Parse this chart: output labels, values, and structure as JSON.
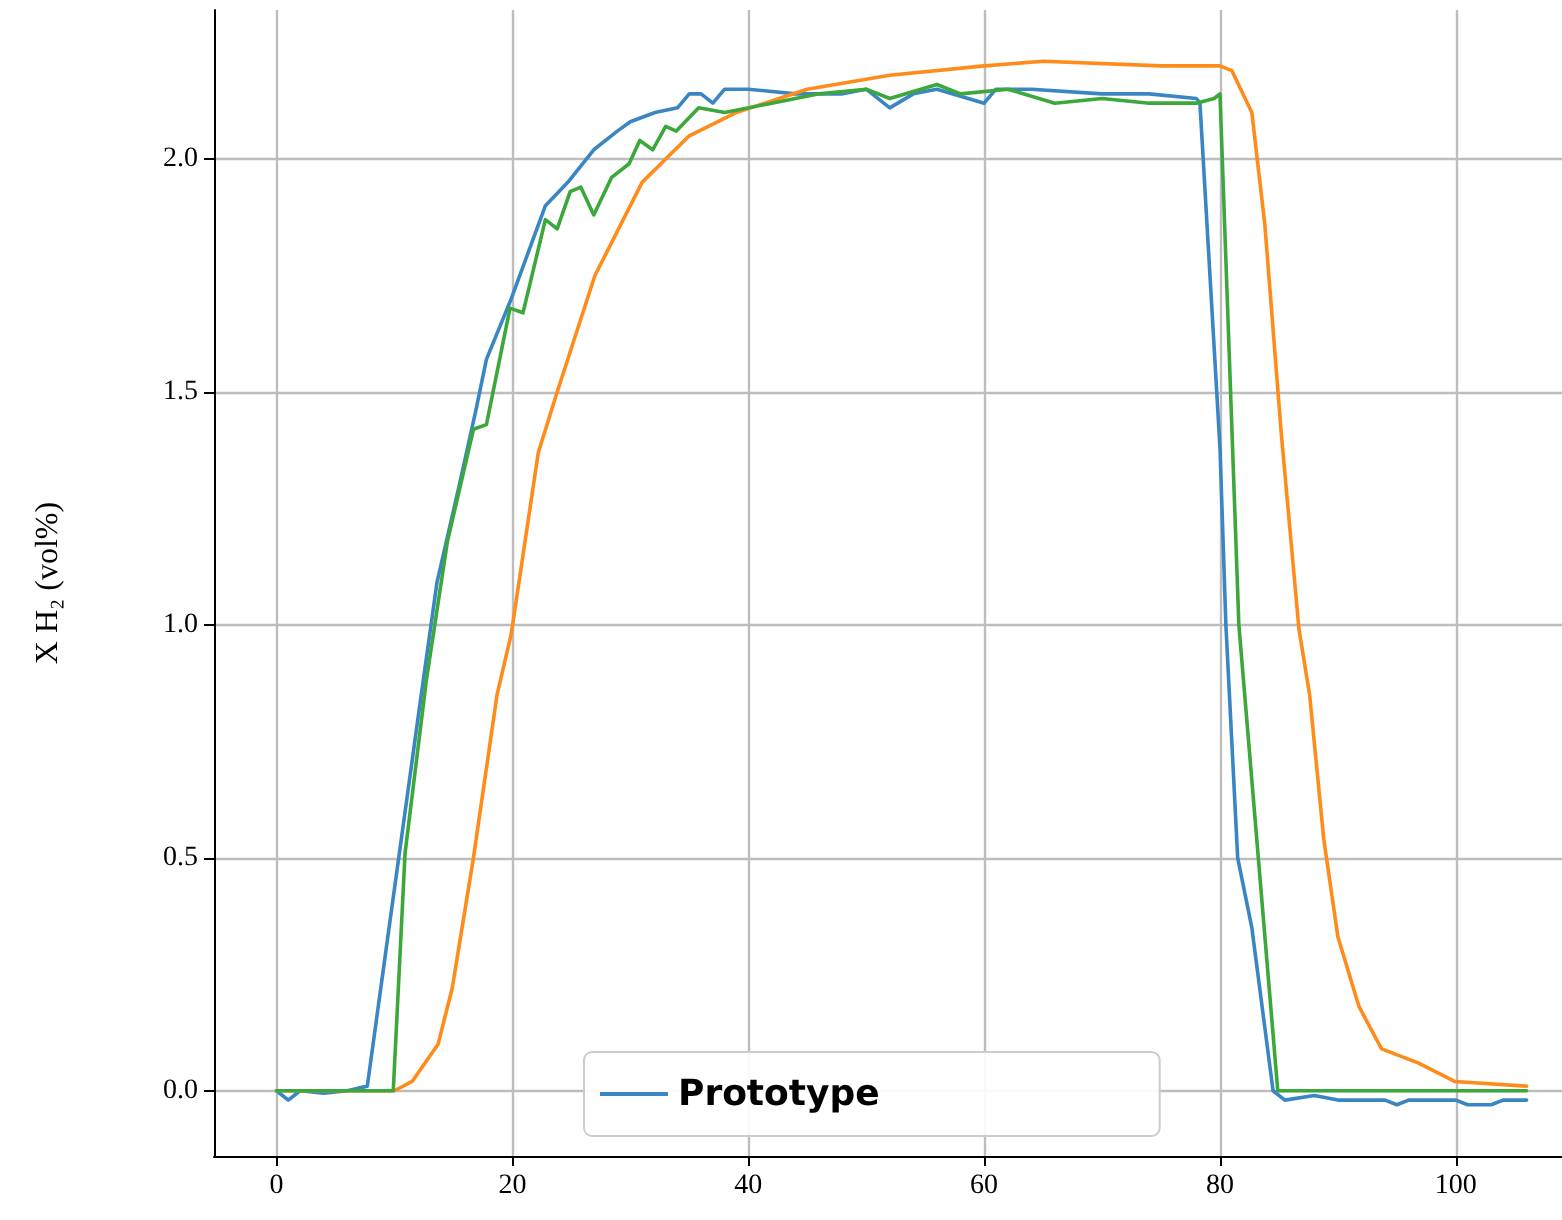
{
  "chart_data": {
    "type": "line",
    "ylabel": "X H₂ (vol%)",
    "xlim": [
      -5.3,
      109
    ],
    "xticks": [
      0,
      20,
      40,
      60,
      80,
      100
    ],
    "ylim": [
      -0.14,
      2.32
    ],
    "yticks": [
      {
        "value": 0,
        "label": "0.0"
      },
      {
        "value": 0.5,
        "label": "0.5"
      },
      {
        "value": 1,
        "label": "1.0"
      },
      {
        "value": 1.5,
        "label": "1.5"
      },
      {
        "value": 2,
        "label": "2.0"
      }
    ],
    "grid": true,
    "legend": "bottom",
    "line_style": "solid",
    "marker": "none",
    "series": [
      {
        "name": "Prototype",
        "color": "#3a86c4",
        "x": [
          0,
          1,
          2,
          4,
          6,
          7.7,
          9.6,
          12,
          13.6,
          15.5,
          16.9,
          17.8,
          19.9,
          22.8,
          24.7,
          26.9,
          28.9,
          30,
          32.1,
          34,
          35,
          36,
          37,
          38,
          40,
          44,
          48,
          50,
          52,
          54,
          56,
          60,
          61,
          64,
          70,
          74,
          78,
          78.3,
          80,
          80.5,
          81.5,
          82.7,
          84.5,
          85.5,
          88,
          90,
          94,
          95,
          96,
          100,
          101,
          103,
          104,
          106
        ],
        "values": [
          0,
          -0.02,
          0,
          -0.005,
          0,
          0.01,
          0.36,
          0.8,
          1.09,
          1.3,
          1.46,
          1.57,
          1.7,
          1.9,
          1.95,
          2.02,
          2.06,
          2.08,
          2.1,
          2.11,
          2.14,
          2.14,
          2.12,
          2.15,
          2.15,
          2.14,
          2.14,
          2.15,
          2.11,
          2.14,
          2.15,
          2.12,
          2.15,
          2.15,
          2.14,
          2.14,
          2.13,
          2.12,
          1.38,
          1.0,
          0.5,
          0.35,
          0,
          -0.02,
          -0.01,
          -0.02,
          -0.02,
          -0.03,
          -0.02,
          -0.02,
          -0.03,
          -0.03,
          -0.02,
          -0.02
        ]
      },
      {
        "color": "#ff8c1a",
        "x": [
          0,
          5,
          10,
          11.5,
          13.7,
          14.9,
          16.7,
          18.7,
          19.9,
          22.2,
          23.8,
          27,
          30,
          31,
          33,
          35,
          39,
          45,
          52,
          60,
          65,
          75,
          80,
          81,
          82.7,
          83.8,
          85.2,
          86.7,
          87.6,
          88.8,
          90,
          91.8,
          93.7,
          96.8,
          99.9,
          106
        ],
        "values": [
          0,
          0,
          0,
          0.02,
          0.1,
          0.22,
          0.5,
          0.85,
          0.98,
          1.37,
          1.5,
          1.75,
          1.9,
          1.95,
          2.0,
          2.05,
          2.1,
          2.15,
          2.18,
          2.2,
          2.21,
          2.2,
          2.2,
          2.19,
          2.1,
          1.86,
          1.41,
          0.99,
          0.85,
          0.54,
          0.33,
          0.18,
          0.09,
          0.06,
          0.02,
          0.01
        ]
      },
      {
        "color": "#3ca83c",
        "x": [
          0,
          5,
          9.9,
          10.9,
          12.7,
          14.5,
          16.7,
          17.8,
          19.8,
          20.9,
          22.8,
          23.8,
          24.9,
          25.8,
          26.9,
          28.4,
          29.9,
          30.8,
          31.9,
          33,
          33.9,
          35.8,
          38,
          42,
          46,
          50,
          52,
          56,
          58,
          62,
          66,
          70,
          74,
          78,
          79.5,
          80,
          81.6,
          84.9,
          90,
          100,
          106
        ],
        "values": [
          0,
          0,
          0,
          0.51,
          0.88,
          1.18,
          1.42,
          1.43,
          1.68,
          1.67,
          1.87,
          1.85,
          1.93,
          1.94,
          1.88,
          1.96,
          1.99,
          2.04,
          2.02,
          2.07,
          2.06,
          2.11,
          2.1,
          2.12,
          2.14,
          2.15,
          2.13,
          2.16,
          2.14,
          2.15,
          2.12,
          2.13,
          2.12,
          2.12,
          2.13,
          2.14,
          1.0,
          0,
          0,
          0,
          0
        ]
      }
    ]
  }
}
